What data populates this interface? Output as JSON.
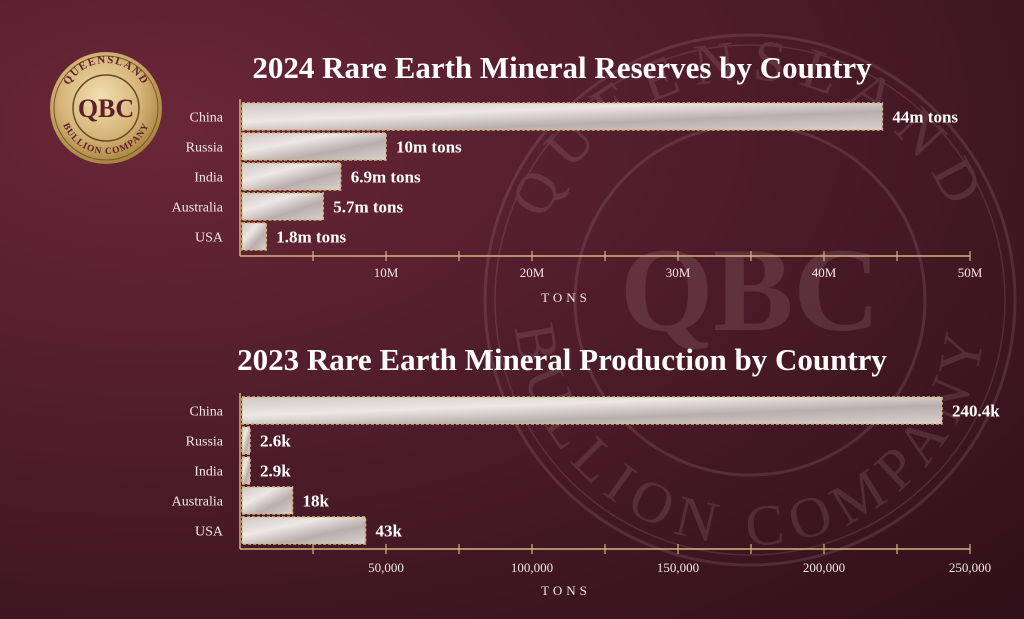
{
  "brand": {
    "ring_top": "QUEENSLAND",
    "ring_bottom": "BULLION COMPANY",
    "monogram": "QBC",
    "gold": "#d6b57a",
    "gold_dark": "#a8843f"
  },
  "chart_data": [
    {
      "type": "bar",
      "orientation": "horizontal",
      "title": "2024 Rare Earth Mineral Reserves by Country",
      "categories": [
        "China",
        "Russia",
        "India",
        "Australia",
        "USA"
      ],
      "values": [
        44000000,
        10000000,
        6900000,
        5700000,
        1800000
      ],
      "data_labels": [
        "44m tons",
        "10m tons",
        "6.9m tons",
        "5.7m tons",
        "1.8m tons"
      ],
      "xlabel": "TONS",
      "xlim": [
        0,
        50000000
      ],
      "xticks": [
        10000000,
        20000000,
        30000000,
        40000000,
        50000000
      ],
      "xtick_labels": [
        "10M",
        "20M",
        "30M",
        "40M",
        "50M"
      ],
      "grid": false,
      "legend": "none"
    },
    {
      "type": "bar",
      "orientation": "horizontal",
      "title": "2023 Rare Earth Mineral Production by Country",
      "categories": [
        "China",
        "Russia",
        "India",
        "Australia",
        "USA"
      ],
      "values": [
        240400,
        2600,
        2900,
        18000,
        43000
      ],
      "data_labels": [
        "240.4k",
        "2.6k",
        "2.9k",
        "18k",
        "43k"
      ],
      "xlabel": "TONS",
      "xlim": [
        0,
        250000
      ],
      "xticks": [
        50000,
        100000,
        150000,
        200000,
        250000
      ],
      "xtick_labels": [
        "50,000",
        "100,000",
        "150,000",
        "200,000",
        "250,000"
      ],
      "grid": false,
      "legend": "none"
    }
  ]
}
